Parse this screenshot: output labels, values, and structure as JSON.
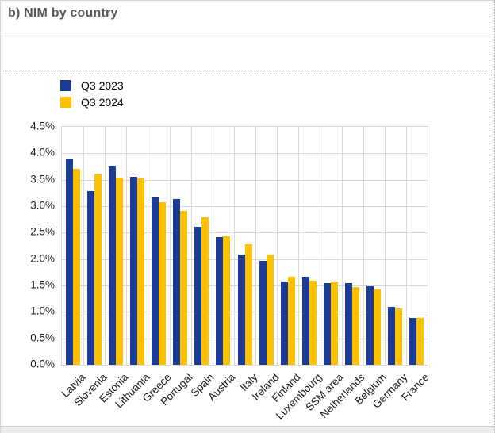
{
  "header": {
    "title": "b) NIM by country"
  },
  "legend": {
    "items": [
      {
        "label": "Q3 2023",
        "color": "#1a3c96"
      },
      {
        "label": "Q3 2024",
        "color": "#ffc000"
      }
    ]
  },
  "chart_data": {
    "type": "bar",
    "title": "b) NIM by country",
    "categories": [
      "Latvia",
      "Slovenia",
      "Estonia",
      "Lithuania",
      "Greece",
      "Portugal",
      "Spain",
      "Austria",
      "Italy",
      "Ireland",
      "Finland",
      "Luxembourg",
      "SSM area",
      "Netherlands",
      "Belgium",
      "Germany",
      "France"
    ],
    "series": [
      {
        "name": "Q3 2023",
        "color": "#1a3c96",
        "values": [
          3.9,
          3.28,
          3.77,
          3.56,
          3.17,
          3.14,
          2.61,
          2.41,
          2.08,
          1.96,
          1.57,
          1.66,
          1.55,
          1.54,
          1.48,
          1.1,
          0.88
        ]
      },
      {
        "name": "Q3 2024",
        "color": "#ffc000",
        "values": [
          3.7,
          3.6,
          3.54,
          3.52,
          3.08,
          2.91,
          2.79,
          2.43,
          2.28,
          2.08,
          1.66,
          1.59,
          1.58,
          1.47,
          1.43,
          1.07,
          0.88
        ]
      }
    ],
    "xlabel": "",
    "ylabel": "",
    "ylim": [
      0,
      4.5
    ],
    "ytick_step": 0.5,
    "ytick_labels": [
      "4.5%",
      "4.0%",
      "3.5%",
      "3.0%",
      "2.5%",
      "2.0%",
      "1.5%",
      "1.0%",
      "0.5%",
      "0.0%"
    ],
    "grid": true,
    "legend_position": "top-left"
  }
}
